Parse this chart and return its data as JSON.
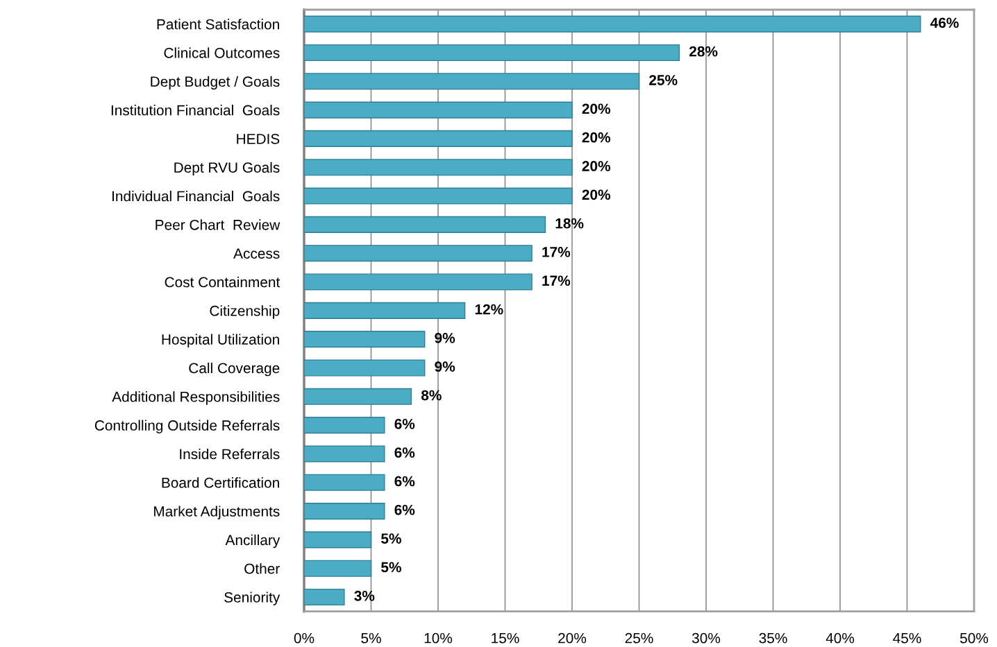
{
  "chart_data": {
    "type": "bar",
    "orientation": "horizontal",
    "categories": [
      "Patient Satisfaction",
      "Clinical Outcomes",
      "Dept Budget / Goals",
      "Institution Financial  Goals",
      "HEDIS",
      "Dept RVU Goals",
      "Individual Financial  Goals",
      "Peer Chart  Review",
      "Access",
      "Cost Containment",
      "Citizenship",
      "Hospital Utilization",
      "Call Coverage",
      "Additional Responsibilities",
      "Controlling Outside Referrals",
      "Inside Referrals",
      "Board Certification",
      "Market Adjustments",
      "Ancillary",
      "Other",
      "Seniority"
    ],
    "values": [
      46,
      28,
      25,
      20,
      20,
      20,
      20,
      18,
      17,
      17,
      12,
      9,
      9,
      8,
      6,
      6,
      6,
      6,
      5,
      5,
      3
    ],
    "value_labels": [
      "46%",
      "28%",
      "25%",
      "20%",
      "20%",
      "20%",
      "20%",
      "18%",
      "17%",
      "17%",
      "12%",
      "9%",
      "9%",
      "8%",
      "6%",
      "6%",
      "6%",
      "6%",
      "5%",
      "5%",
      "3%"
    ],
    "color": "#4bacc6",
    "xlim": [
      0,
      50
    ],
    "xticks": [
      {
        "value": 0,
        "label": "0%"
      },
      {
        "value": 5,
        "label": "5%"
      },
      {
        "value": 10,
        "label": "10%"
      },
      {
        "value": 15,
        "label": "15%"
      },
      {
        "value": 20,
        "label": "20%"
      },
      {
        "value": 25,
        "label": "25%"
      },
      {
        "value": 30,
        "label": "30%"
      },
      {
        "value": 35,
        "label": "35%"
      },
      {
        "value": 40,
        "label": "40%"
      },
      {
        "value": 45,
        "label": "45%"
      },
      {
        "value": 50,
        "label": "50%"
      }
    ],
    "grid": "x",
    "legend": false
  }
}
